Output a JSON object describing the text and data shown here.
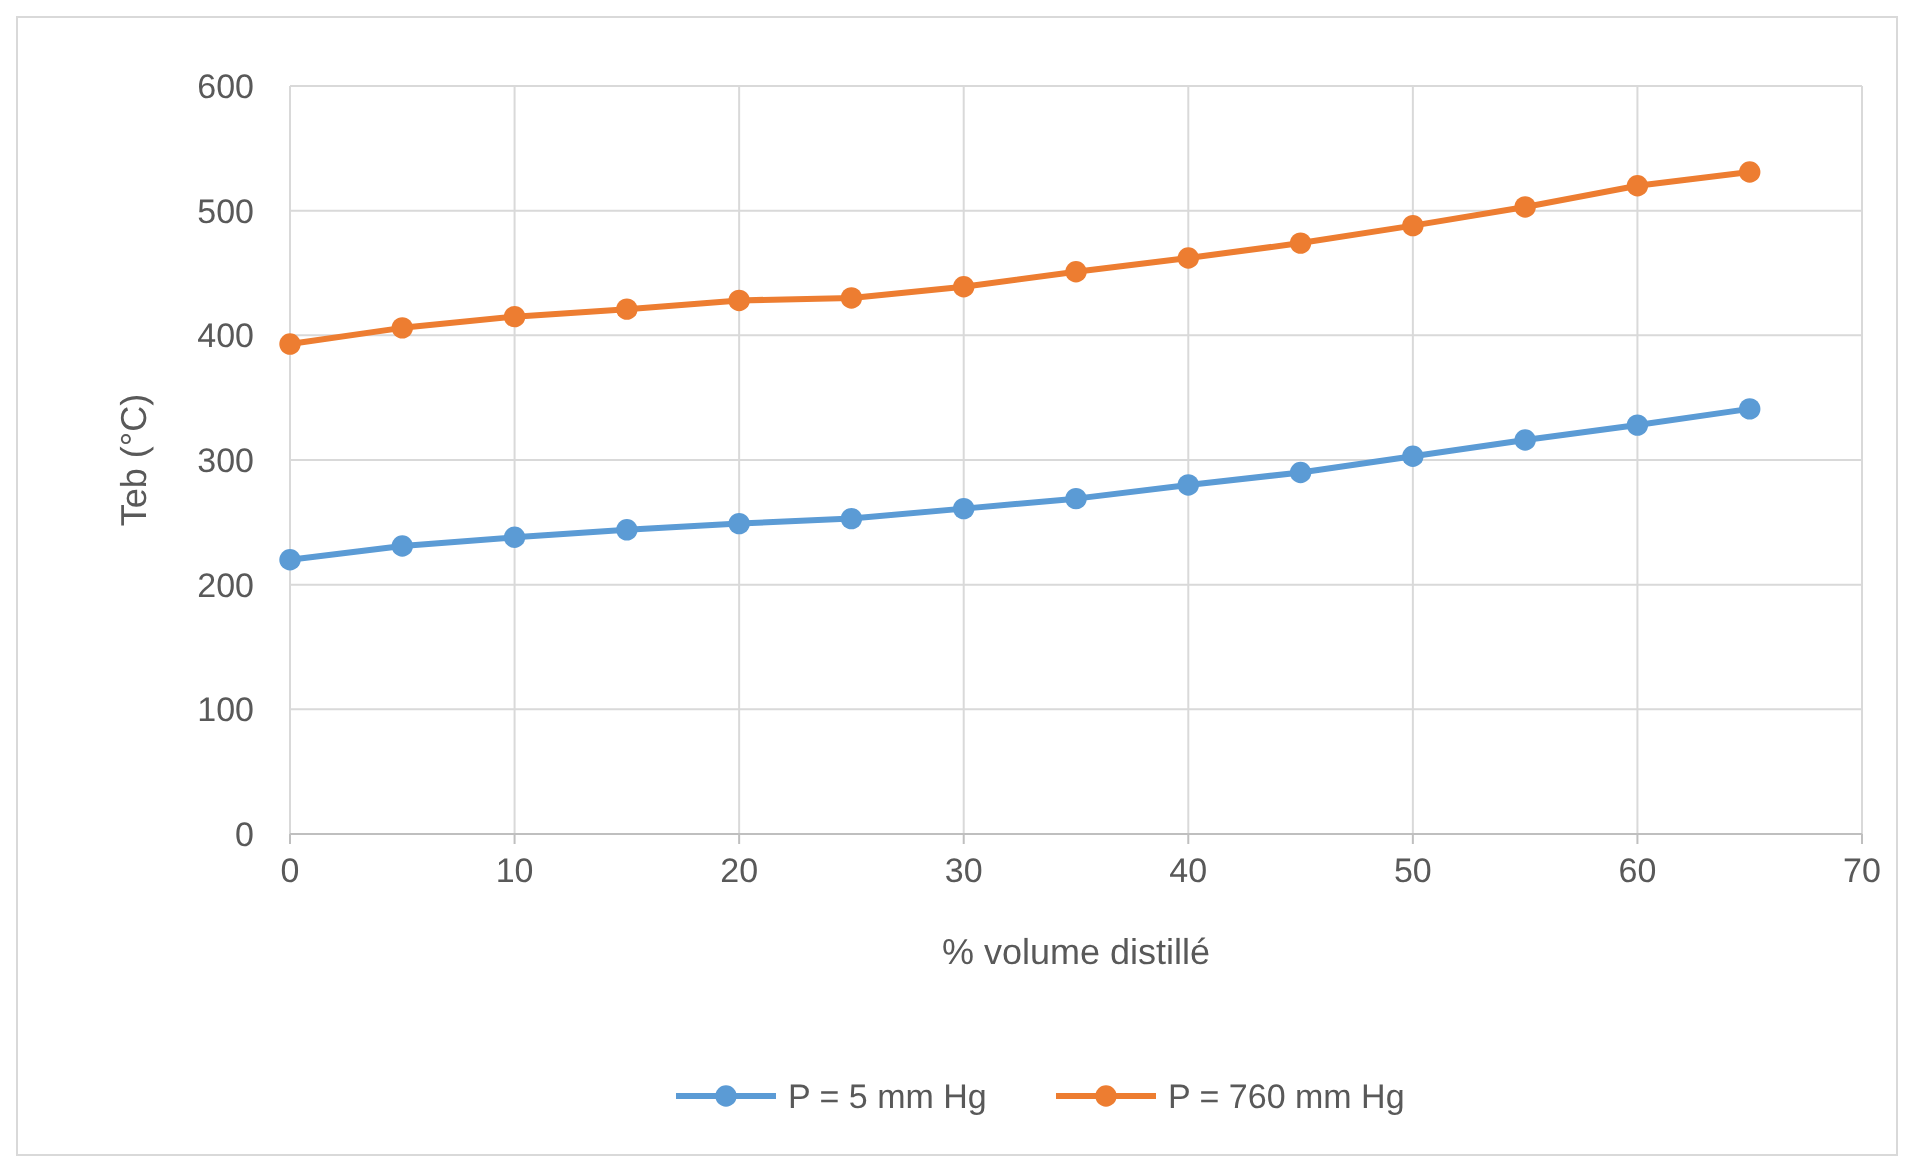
{
  "chart_data": {
    "type": "line",
    "xlabel": "% volume distillé",
    "ylabel": "Teb (°C)",
    "x": [
      0,
      5,
      10,
      15,
      20,
      25,
      30,
      35,
      40,
      45,
      50,
      55,
      60,
      65
    ],
    "series": [
      {
        "name": "P = 5 mm Hg",
        "color": "#5b9bd5",
        "values": [
          220,
          231,
          238,
          244,
          249,
          253,
          261,
          269,
          280,
          290,
          303,
          316,
          328,
          341
        ]
      },
      {
        "name": "P = 760 mm Hg",
        "color": "#ed7d31",
        "values": [
          393,
          406,
          415,
          421,
          428,
          430,
          439,
          451,
          462,
          474,
          488,
          503,
          520,
          531
        ]
      }
    ],
    "xlim": [
      0,
      70
    ],
    "xticks": [
      0,
      10,
      20,
      30,
      40,
      50,
      60,
      70
    ],
    "ylim": [
      0,
      600
    ],
    "yticks": [
      0,
      100,
      200,
      300,
      400,
      500,
      600
    ],
    "grid": true,
    "legend": "bottom",
    "marker": "circle",
    "line_style": "solid"
  }
}
